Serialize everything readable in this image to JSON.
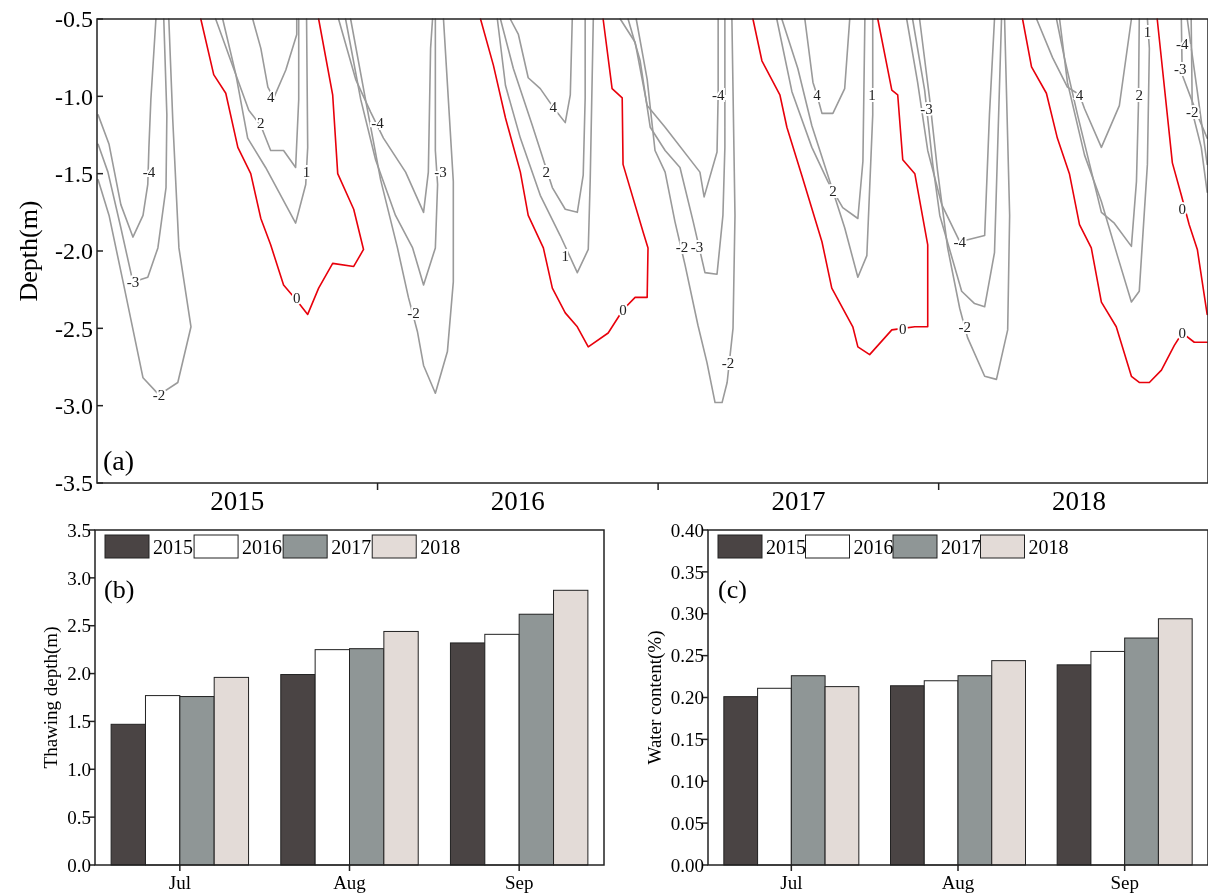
{
  "chart_data": [
    {
      "type": "line",
      "ylabel": "Depth(m)",
      "xlim": [
        2014.5,
        2018.46
      ],
      "ylim": [
        -3.5,
        -0.5
      ],
      "xticks": [
        {
          "value": 2015,
          "label": "2015"
        },
        {
          "value": 2015.5,
          "label": null
        },
        {
          "value": 2016,
          "label": "2016"
        },
        {
          "value": 2016.5,
          "label": null
        },
        {
          "value": 2017,
          "label": "2017"
        },
        {
          "value": 2017.5,
          "label": null
        },
        {
          "value": 2018,
          "label": "2018"
        }
      ],
      "yticks": [
        -3.5,
        {
          "value": -3,
          "label": "-3.0"
        },
        -2.5,
        {
          "value": -2,
          "label": "-2.0"
        },
        -1.5,
        {
          "value": -1,
          "label": "-1.0"
        },
        -0.5
      ],
      "series": [
        {
          "color": "#9a9a9a",
          "x": [
            2014.504,
            2014.543,
            2014.585,
            2014.628,
            2014.664,
            2014.681,
            2014.685,
            2014.692,
            2014.71
          ],
          "values": [
            -1.12,
            -1.31,
            -1.7,
            -1.91,
            -1.77,
            -1.57,
            -1.33,
            -1.02,
            -0.5
          ]
        },
        {
          "color": "#9a9a9a",
          "x": [
            2014.504,
            2014.539,
            2014.585,
            2014.628,
            2014.681,
            2014.717,
            2014.746,
            2014.749,
            2014.738
          ],
          "values": [
            -1.31,
            -1.49,
            -1.85,
            -2.2,
            -2.17,
            -1.98,
            -1.59,
            -1.12,
            -0.5
          ]
        },
        {
          "color": "#9a9a9a",
          "x": [
            2014.504,
            2014.543,
            2014.593,
            2014.664,
            2014.721,
            2014.788,
            2014.835,
            2014.792,
            2014.77,
            2014.756
          ],
          "values": [
            -1.54,
            -1.77,
            -2.2,
            -2.82,
            -2.93,
            -2.85,
            -2.49,
            -1.98,
            -1.15,
            -0.5
          ]
        },
        {
          "color": "#e8000b",
          "x": [
            2014.87,
            2014.916,
            2014.959,
            2015.002,
            2015.048,
            2015.084,
            2015.119,
            2015.165,
            2015.212,
            2015.251,
            2015.29,
            2015.34,
            2015.415,
            2015.45,
            2015.415,
            2015.358,
            2015.34,
            2015.29
          ],
          "values": [
            -0.5,
            -0.86,
            -0.98,
            -1.33,
            -1.5,
            -1.79,
            -1.96,
            -2.22,
            -2.32,
            -2.41,
            -2.24,
            -2.08,
            -2.1,
            -1.99,
            -1.73,
            -1.5,
            -0.99,
            -0.5
          ]
        },
        {
          "color": "#9a9a9a",
          "x": [
            2014.948,
            2014.995,
            2015.037,
            2015.101,
            2015.208,
            2015.244,
            2015.251,
            2015.247
          ],
          "values": [
            -0.5,
            -0.86,
            -1.27,
            -1.46,
            -1.82,
            -1.57,
            -1.33,
            -0.5
          ]
        },
        {
          "color": "#9a9a9a",
          "x": [
            2014.923,
            2014.995,
            2015.041,
            2015.084,
            2015.119,
            2015.165,
            2015.208,
            2015.219,
            2015.219
          ],
          "values": [
            -0.5,
            -0.86,
            -1.09,
            -1.19,
            -1.35,
            -1.35,
            -1.46,
            -1.02,
            -0.5
          ]
        },
        {
          "color": "#9a9a9a",
          "x": [
            2015.055,
            2015.084,
            2015.109,
            2015.13,
            2015.173,
            2015.212,
            2015.212
          ],
          "values": [
            -0.5,
            -0.69,
            -0.94,
            -1.01,
            -0.83,
            -0.6,
            -0.5
          ]
        },
        {
          "color": "#9a9a9a",
          "x": [
            2015.361,
            2015.422,
            2015.475,
            2015.521,
            2015.6,
            2015.664,
            2015.681,
            2015.689,
            2015.696
          ],
          "values": [
            -0.5,
            -0.89,
            -1.1,
            -1.27,
            -1.49,
            -1.75,
            -1.49,
            -0.69,
            -0.5
          ]
        },
        {
          "color": "#9a9a9a",
          "x": [
            2015.386,
            2015.44,
            2015.493,
            2015.564,
            2015.625,
            2015.664,
            2015.706,
            2015.714,
            2015.706,
            2015.706
          ],
          "values": [
            -0.5,
            -1.02,
            -1.41,
            -1.77,
            -1.98,
            -2.22,
            -1.98,
            -1.57,
            -1.35,
            -0.5
          ]
        },
        {
          "color": "#9a9a9a",
          "x": [
            2015.404,
            2015.457,
            2015.511,
            2015.571,
            2015.61,
            2015.642,
            2015.664,
            2015.706,
            2015.749,
            2015.77,
            2015.77,
            2015.735
          ],
          "values": [
            -0.5,
            -1.02,
            -1.54,
            -1.98,
            -2.3,
            -2.52,
            -2.74,
            -2.92,
            -2.65,
            -2.2,
            -1.55,
            -0.5
          ]
        },
        {
          "color": "#e8000b",
          "x": [
            2015.867,
            2015.913,
            2015.956,
            2016.009,
            2016.037,
            2016.091,
            2016.123,
            2016.169,
            2016.212,
            2016.251,
            2016.322,
            2016.375,
            2016.418,
            2016.461,
            2016.464,
            2016.447,
            2016.375,
            2016.372,
            2016.336,
            2016.304
          ],
          "values": [
            -0.5,
            -0.8,
            -1.14,
            -1.49,
            -1.77,
            -1.98,
            -2.24,
            -2.4,
            -2.49,
            -2.62,
            -2.53,
            -2.38,
            -2.3,
            -2.3,
            -1.98,
            -1.88,
            -1.44,
            -1.01,
            -0.95,
            -0.5
          ]
        },
        {
          "color": "#9a9a9a",
          "x": [
            2015.927,
            2015.956,
            2016.009,
            2016.08,
            2016.151,
            2016.212,
            2016.251,
            2016.258,
            2016.269
          ],
          "values": [
            -0.5,
            -0.93,
            -1.27,
            -1.64,
            -1.9,
            -2.14,
            -1.99,
            -1.54,
            -0.5
          ]
        },
        {
          "color": "#9a9a9a",
          "x": [
            2015.938,
            2015.984,
            2016.052,
            2016.123,
            2016.169,
            2016.212,
            2016.233,
            2016.24,
            2016.24
          ],
          "values": [
            -0.5,
            -0.82,
            -1.19,
            -1.59,
            -1.73,
            -1.75,
            -1.51,
            -1.01,
            -0.5
          ]
        },
        {
          "color": "#9a9a9a",
          "x": [
            2015.973,
            2016.002,
            2016.037,
            2016.08,
            2016.126,
            2016.169,
            2016.187,
            2016.194
          ],
          "values": [
            -0.5,
            -0.6,
            -0.88,
            -0.95,
            -1.07,
            -1.17,
            -0.99,
            -0.5
          ]
        },
        {
          "color": "#9a9a9a",
          "x": [
            2016.365,
            2016.418,
            2016.461,
            2016.525,
            2016.649,
            2016.664,
            2016.71,
            2016.714,
            2016.714
          ],
          "values": [
            -0.5,
            -0.65,
            -1.06,
            -1.2,
            -1.49,
            -1.65,
            -1.36,
            -0.99,
            -0.5
          ]
        },
        {
          "color": "#9a9a9a",
          "x": [
            2016.393,
            2016.436,
            2016.472,
            2016.525,
            2016.578,
            2016.625,
            2016.667,
            2016.71,
            2016.731,
            2016.738,
            2016.738
          ],
          "values": [
            -0.5,
            -0.77,
            -1.2,
            -1.35,
            -1.46,
            -1.81,
            -2.14,
            -2.15,
            -1.77,
            -1.33,
            -0.5
          ]
        },
        {
          "color": "#9a9a9a",
          "x": [
            2016.422,
            2016.461,
            2016.489,
            2016.525,
            2016.56,
            2016.596,
            2016.642,
            2016.674,
            2016.703,
            2016.728,
            2016.746,
            2016.767,
            2016.774,
            2016.763
          ],
          "values": [
            -0.5,
            -0.89,
            -1.35,
            -1.49,
            -1.81,
            -2.09,
            -2.48,
            -2.72,
            -2.98,
            -2.98,
            -2.85,
            -2.5,
            -1.77,
            -0.5
          ]
        },
        {
          "color": "#e8000b",
          "x": [
            2016.838,
            2016.87,
            2016.934,
            2016.959,
            2017.012,
            2017.084,
            2017.119,
            2017.194,
            2017.212,
            2017.254,
            2017.333,
            2017.372,
            2017.415,
            2017.461,
            2017.461,
            2017.415,
            2017.372,
            2017.354,
            2017.333,
            2017.283
          ],
          "values": [
            -0.5,
            -0.77,
            -0.99,
            -1.2,
            -1.51,
            -1.94,
            -2.24,
            -2.49,
            -2.62,
            -2.67,
            -2.51,
            -2.5,
            -2.49,
            -2.49,
            -1.96,
            -1.5,
            -1.41,
            -0.99,
            -0.96,
            -0.5
          ]
        },
        {
          "color": "#9a9a9a",
          "x": [
            2016.941,
            2016.998,
            2017.048,
            2017.105,
            2017.165,
            2017.212,
            2017.244,
            2017.265,
            2017.265
          ],
          "values": [
            -0.5,
            -0.82,
            -1.19,
            -1.51,
            -1.85,
            -2.17,
            -2.03,
            -1.12,
            -0.5
          ]
        },
        {
          "color": "#9a9a9a",
          "x": [
            2016.923,
            2016.977,
            2017.048,
            2017.105,
            2017.123,
            2017.158,
            2017.212,
            2017.23,
            2017.237
          ],
          "values": [
            -0.5,
            -0.97,
            -1.33,
            -1.55,
            -1.61,
            -1.72,
            -1.79,
            -1.42,
            -0.5
          ]
        },
        {
          "color": "#9a9a9a",
          "x": [
            2017.023,
            2017.052,
            2017.066,
            2017.084,
            2017.123,
            2017.165,
            2017.183
          ],
          "values": [
            -0.5,
            -0.91,
            -0.99,
            -1.11,
            -1.11,
            -0.95,
            -0.5
          ]
        },
        {
          "color": "#9a9a9a",
          "x": [
            2017.386,
            2017.425,
            2017.461,
            2017.511,
            2017.575,
            2017.664,
            2017.681,
            2017.699
          ],
          "values": [
            -0.5,
            -0.91,
            -1.35,
            -1.7,
            -1.94,
            -1.9,
            -1.12,
            -0.5
          ]
        },
        {
          "color": "#9a9a9a",
          "x": [
            2017.407,
            2017.45,
            2017.479,
            2017.504,
            2017.582,
            2017.628,
            2017.664,
            2017.699,
            2017.724
          ],
          "values": [
            -0.5,
            -0.96,
            -1.44,
            -1.77,
            -2.26,
            -2.34,
            -2.36,
            -2.01,
            -0.5
          ]
        },
        {
          "color": "#9a9a9a",
          "x": [
            2017.432,
            2017.468,
            2017.496,
            2017.532,
            2017.575,
            2017.603,
            2017.664,
            2017.706,
            2017.746,
            2017.753,
            2017.735
          ],
          "values": [
            -0.5,
            -1.02,
            -1.48,
            -1.98,
            -2.37,
            -2.56,
            -2.81,
            -2.83,
            -2.51,
            -1.77,
            -0.5
          ]
        },
        {
          "color": "#e8000b",
          "x": [
            2017.799,
            2017.831,
            2017.884,
            2017.923,
            2017.966,
            2018.002,
            2018.044,
            2018.08,
            2018.133,
            2018.187,
            2018.215,
            2018.251,
            2018.294,
            2018.34,
            2018.368,
            2018.411,
            2018.457
          ],
          "values": [
            -0.5,
            -0.81,
            -0.98,
            -1.27,
            -1.5,
            -1.83,
            -1.98,
            -2.33,
            -2.49,
            -2.81,
            -2.85,
            -2.85,
            -2.77,
            -2.61,
            -2.53,
            -2.59,
            -2.59
          ]
        },
        {
          "color": "#e8000b",
          "x": [
            2018.279,
            2018.333,
            2018.365,
            2018.393,
            2018.422,
            2018.457
          ],
          "values": [
            -0.5,
            -1.43,
            -1.64,
            -1.83,
            -1.99,
            -2.41
          ]
        },
        {
          "color": "#9a9a9a",
          "x": [
            2017.849,
            2017.906,
            2017.959,
            2018.002,
            2018.02,
            2018.08,
            2018.144,
            2018.187
          ],
          "values": [
            -0.5,
            -0.75,
            -0.94,
            -0.99,
            -1.08,
            -1.33,
            -1.06,
            -0.5
          ]
        },
        {
          "color": "#9a9a9a",
          "x": [
            2017.92,
            2017.948,
            2017.995,
            2018.08,
            2018.126,
            2018.187,
            2018.205,
            2018.212,
            2018.215
          ],
          "values": [
            -0.5,
            -0.75,
            -1.12,
            -1.75,
            -1.82,
            -1.97,
            -1.55,
            -1.06,
            -0.5
          ]
        },
        {
          "color": "#9a9a9a",
          "x": [
            2017.931,
            2017.959,
            2018.02,
            2018.08,
            2018.137,
            2018.187,
            2018.215,
            2018.244,
            2018.251,
            2018.244
          ],
          "values": [
            -0.5,
            -0.91,
            -1.38,
            -1.68,
            -2.03,
            -2.33,
            -2.26,
            -1.44,
            -0.69,
            -0.5
          ]
        },
        {
          "color": "#9a9a9a",
          "x": [
            2018.365,
            2018.368,
            2018.422,
            2018.457
          ],
          "values": [
            -0.5,
            -0.86,
            -1.12,
            -1.27
          ]
        },
        {
          "color": "#9a9a9a",
          "x": [
            2018.386,
            2018.422,
            2018.457
          ],
          "values": [
            -0.5,
            -0.97,
            -1.44
          ]
        },
        {
          "color": "#9a9a9a",
          "x": [
            2018.4,
            2018.404,
            2018.436,
            2018.457
          ],
          "values": [
            -0.5,
            -1.1,
            -1.33,
            -1.62
          ]
        }
      ],
      "annotations": [
        "(a)",
        {
          "text": "-4",
          "x": 2014.685,
          "y": -1.49
        },
        {
          "text": "-3",
          "x": 2014.628,
          "y": -2.2
        },
        {
          "text": "-2",
          "x": 2014.721,
          "y": -2.93
        },
        {
          "text": "0",
          "x": 2015.212,
          "y": -2.3
        },
        {
          "text": "2",
          "x": 2015.084,
          "y": -1.17
        },
        {
          "text": "4",
          "x": 2015.119,
          "y": -1.0
        },
        {
          "text": "1",
          "x": 2015.247,
          "y": -1.49
        },
        {
          "text": "-4",
          "x": 2015.5,
          "y": -1.17
        },
        {
          "text": "-3",
          "x": 2015.724,
          "y": -1.49
        },
        {
          "text": "-2",
          "x": 2015.628,
          "y": -2.4
        },
        {
          "text": "0",
          "x": 2016.375,
          "y": -2.38
        },
        {
          "text": "1",
          "x": 2016.169,
          "y": -2.03
        },
        {
          "text": "2",
          "x": 2016.101,
          "y": -1.49
        },
        {
          "text": "4",
          "x": 2016.126,
          "y": -1.07
        },
        {
          "text": "-4",
          "x": 2016.714,
          "y": -0.99
        },
        {
          "text": "-3",
          "x": 2016.639,
          "y": -1.97
        },
        {
          "text": "-2",
          "x": 2016.585,
          "y": -1.97
        },
        {
          "text": "-2",
          "x": 2016.749,
          "y": -2.72
        },
        {
          "text": "0",
          "x": 2017.372,
          "y": -2.5
        },
        {
          "text": "1",
          "x": 2017.262,
          "y": -0.99
        },
        {
          "text": "2",
          "x": 2017.123,
          "y": -1.61
        },
        {
          "text": "4",
          "x": 2017.066,
          "y": -0.99
        },
        {
          "text": "-3",
          "x": 2017.457,
          "y": -1.08
        },
        {
          "text": "-4",
          "x": 2017.575,
          "y": -1.94
        },
        {
          "text": "-2",
          "x": 2017.593,
          "y": -2.49
        },
        {
          "text": "4",
          "x": 2018.002,
          "y": -0.99
        },
        {
          "text": "2",
          "x": 2018.215,
          "y": -0.99
        },
        {
          "text": "1",
          "x": 2018.244,
          "y": -0.58
        },
        {
          "text": "0",
          "x": 2018.368,
          "y": -2.53
        },
        {
          "text": "0",
          "x": 2018.368,
          "y": -1.73
        },
        {
          "text": "-4",
          "x": 2018.368,
          "y": -0.66
        },
        {
          "text": "-3",
          "x": 2018.361,
          "y": -0.82
        },
        {
          "text": "-2",
          "x": 2018.404,
          "y": -1.1
        }
      ]
    },
    {
      "type": "bar",
      "ylabel": "Thawing depth(m)",
      "categories": [
        "Jul",
        "Aug",
        "Sep"
      ],
      "ylim": [
        0,
        3.5
      ],
      "yticks": [
        {
          "value": 0,
          "label": "0.0"
        },
        0.5,
        {
          "value": 1,
          "label": "1.0"
        },
        1.5,
        {
          "value": 2,
          "label": "2.0"
        },
        2.5,
        {
          "value": 3,
          "label": "3.0"
        },
        3.5
      ],
      "legend": "top left",
      "annotations": [
        "(b)"
      ],
      "series": [
        {
          "name": "2015",
          "color": "#4a4444",
          "values": [
            1.47,
            1.99,
            2.32
          ]
        },
        {
          "name": "2016",
          "color": "#ffffff",
          "values": [
            1.77,
            2.25,
            2.41
          ]
        },
        {
          "name": "2017",
          "color": "#8f9696",
          "values": [
            1.76,
            2.26,
            2.62
          ]
        },
        {
          "name": "2018",
          "color": "#e3dbd7",
          "values": [
            1.96,
            2.44,
            2.87
          ]
        }
      ]
    },
    {
      "type": "bar",
      "ylabel": "Water content(%)",
      "categories": [
        "Jul",
        "Aug",
        "Sep"
      ],
      "ylim": [
        0,
        0.4
      ],
      "yticks": [
        {
          "value": 0,
          "label": "0.00"
        },
        0.05,
        {
          "value": 0.1,
          "label": "0.10"
        },
        0.15,
        {
          "value": 0.2,
          "label": "0.20"
        },
        0.25,
        {
          "value": 0.3,
          "label": "0.30"
        },
        0.35,
        {
          "value": 0.4,
          "label": "0.40"
        }
      ],
      "legend": "top left",
      "annotations": [
        "(c)"
      ],
      "series": [
        {
          "name": "2015",
          "color": "#4a4444",
          "values": [
            0.201,
            0.214,
            0.239
          ]
        },
        {
          "name": "2016",
          "color": "#ffffff",
          "values": [
            0.211,
            0.22,
            0.255
          ]
        },
        {
          "name": "2017",
          "color": "#8f9696",
          "values": [
            0.226,
            0.226,
            0.271
          ]
        },
        {
          "name": "2018",
          "color": "#e3dbd7",
          "values": [
            0.213,
            0.244,
            0.294
          ]
        }
      ]
    }
  ]
}
